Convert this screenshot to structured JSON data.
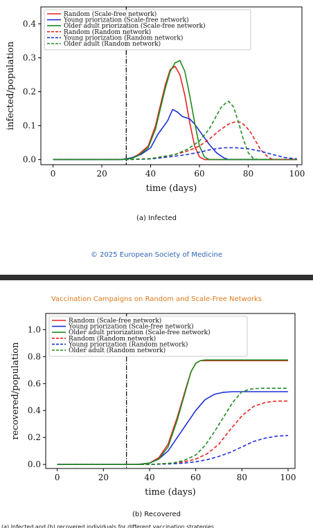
{
  "footer": {
    "credit": "© 2025 European Society of Medicine"
  },
  "bottom_panel": {
    "title": "Vaccination Campaigns on Random and Scale-Free Networks",
    "cut_text": "(a) Infected and (b) recovered individuals for different vaccination strategies"
  },
  "colors": {
    "red": "#e8221e",
    "blue": "#1d2fd6",
    "green": "#1f8a1f",
    "vline": "#000000"
  },
  "chart_data": [
    {
      "type": "line",
      "caption": "(a) Infected",
      "xlabel": "time (days)",
      "ylabel": "infected/population",
      "xlim": [
        -5,
        102
      ],
      "ylim": [
        -0.015,
        0.45
      ],
      "xticks": [
        "0",
        "20",
        "40",
        "60",
        "80",
        "100"
      ],
      "yticks": [
        "0.0",
        "0.1",
        "0.2",
        "0.3",
        "0.4"
      ],
      "vline": 30,
      "legend": "top-left",
      "series": [
        {
          "name": "Random (Scale-free network)",
          "color": "red",
          "dash": false,
          "x": [
            0,
            28,
            32,
            35,
            39,
            42,
            44,
            46,
            48,
            50,
            52,
            54,
            56,
            58,
            60,
            62,
            100
          ],
          "y": [
            0,
            0,
            0.004,
            0.015,
            0.04,
            0.1,
            0.16,
            0.22,
            0.265,
            0.275,
            0.25,
            0.19,
            0.11,
            0.04,
            0.008,
            0,
            0
          ]
        },
        {
          "name": "Young priorization (Scale-free network)",
          "color": "blue",
          "dash": false,
          "x": [
            0,
            28,
            32,
            36,
            40,
            43,
            45,
            47,
            49,
            51,
            53,
            56,
            58,
            60,
            62,
            64,
            67,
            70,
            72,
            100
          ],
          "y": [
            0,
            0,
            0.005,
            0.015,
            0.035,
            0.075,
            0.095,
            0.115,
            0.148,
            0.14,
            0.127,
            0.12,
            0.105,
            0.085,
            0.065,
            0.045,
            0.02,
            0.005,
            0,
            0
          ]
        },
        {
          "name": "Older adult priorization (Scale-free network)",
          "color": "green",
          "dash": false,
          "x": [
            0,
            28,
            32,
            35,
            39,
            42,
            44,
            46,
            48,
            50,
            52,
            54,
            56,
            58,
            60,
            62,
            64,
            100
          ],
          "y": [
            0,
            0,
            0.003,
            0.012,
            0.035,
            0.09,
            0.15,
            0.21,
            0.26,
            0.285,
            0.292,
            0.26,
            0.19,
            0.11,
            0.04,
            0.008,
            0,
            0
          ]
        },
        {
          "name": "Random (Random network)",
          "color": "red",
          "dash": true,
          "x": [
            0,
            30,
            40,
            50,
            55,
            60,
            64,
            68,
            72,
            75,
            77,
            79,
            81,
            83,
            85,
            88,
            90,
            100
          ],
          "y": [
            0,
            0,
            0.003,
            0.015,
            0.025,
            0.04,
            0.06,
            0.085,
            0.105,
            0.112,
            0.11,
            0.098,
            0.08,
            0.055,
            0.03,
            0.008,
            0,
            0
          ]
        },
        {
          "name": "Young priorization (Random network)",
          "color": "blue",
          "dash": true,
          "x": [
            0,
            30,
            40,
            50,
            55,
            60,
            65,
            70,
            75,
            80,
            85,
            90,
            95,
            100
          ],
          "y": [
            0,
            0,
            0.002,
            0.01,
            0.015,
            0.022,
            0.03,
            0.035,
            0.035,
            0.032,
            0.025,
            0.015,
            0.006,
            0.002
          ]
        },
        {
          "name": "Older adult (Random network)",
          "color": "green",
          "dash": true,
          "x": [
            0,
            30,
            40,
            50,
            55,
            60,
            64,
            67,
            69,
            71,
            72,
            74,
            76,
            78,
            80,
            82,
            84,
            100
          ],
          "y": [
            0,
            0,
            0.003,
            0.015,
            0.03,
            0.055,
            0.09,
            0.13,
            0.155,
            0.168,
            0.172,
            0.155,
            0.11,
            0.06,
            0.02,
            0.004,
            0,
            0
          ]
        }
      ]
    },
    {
      "type": "line",
      "caption": "(b) Recovered",
      "xlabel": "time (days)",
      "ylabel": "recovered/population",
      "xlim": [
        -5,
        103
      ],
      "ylim": [
        -0.03,
        1.12
      ],
      "xticks": [
        "0",
        "20",
        "40",
        "60",
        "80",
        "100"
      ],
      "yticks": [
        "0.0",
        "0.2",
        "0.4",
        "0.6",
        "0.8",
        "1.0"
      ],
      "vline": 30,
      "legend": "top-left",
      "series": [
        {
          "name": "Random (Scale-free network)",
          "color": "red",
          "dash": false,
          "x": [
            0,
            35,
            40,
            44,
            48,
            52,
            56,
            58,
            60,
            62,
            100
          ],
          "y": [
            0,
            0,
            0.01,
            0.05,
            0.15,
            0.35,
            0.58,
            0.69,
            0.75,
            0.77,
            0.77
          ]
        },
        {
          "name": "Young priorization (Scale-free network)",
          "color": "blue",
          "dash": false,
          "x": [
            0,
            35,
            40,
            44,
            48,
            52,
            56,
            60,
            64,
            68,
            72,
            76,
            80,
            100
          ],
          "y": [
            0,
            0,
            0.01,
            0.04,
            0.1,
            0.2,
            0.3,
            0.4,
            0.48,
            0.52,
            0.535,
            0.54,
            0.54,
            0.54
          ]
        },
        {
          "name": "Older adult priorization (Scale-free network)",
          "color": "green",
          "dash": false,
          "x": [
            0,
            35,
            40,
            44,
            48,
            52,
            56,
            58,
            60,
            62,
            64,
            100
          ],
          "y": [
            0,
            0,
            0.01,
            0.04,
            0.13,
            0.33,
            0.57,
            0.69,
            0.75,
            0.77,
            0.775,
            0.775
          ]
        },
        {
          "name": "Random (Random network)",
          "color": "red",
          "dash": true,
          "x": [
            0,
            40,
            50,
            55,
            60,
            65,
            70,
            75,
            80,
            85,
            90,
            95,
            100
          ],
          "y": [
            0,
            0,
            0.01,
            0.02,
            0.04,
            0.08,
            0.15,
            0.26,
            0.36,
            0.43,
            0.46,
            0.47,
            0.47
          ]
        },
        {
          "name": "Young priorization (Random network)",
          "color": "blue",
          "dash": true,
          "x": [
            0,
            40,
            50,
            55,
            60,
            65,
            70,
            75,
            80,
            85,
            90,
            95,
            100
          ],
          "y": [
            0,
            0,
            0.005,
            0.01,
            0.02,
            0.035,
            0.06,
            0.09,
            0.13,
            0.17,
            0.195,
            0.21,
            0.215
          ]
        },
        {
          "name": "Older adult (Random network)",
          "color": "green",
          "dash": true,
          "x": [
            0,
            40,
            50,
            55,
            60,
            64,
            68,
            72,
            76,
            80,
            84,
            88,
            100
          ],
          "y": [
            0,
            0,
            0.01,
            0.03,
            0.07,
            0.14,
            0.24,
            0.35,
            0.46,
            0.54,
            0.56,
            0.565,
            0.565
          ]
        }
      ]
    }
  ]
}
